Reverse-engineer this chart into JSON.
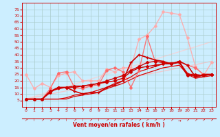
{
  "bg_color": "#cceeff",
  "grid_color": "#aacccc",
  "xlabel": "Vent moyen/en rafales ( km/h )",
  "xlabel_color": "#cc0000",
  "tick_color": "#cc0000",
  "ylim": [
    0,
    80
  ],
  "xlim": [
    -0.5,
    23.5
  ],
  "yticks": [
    5,
    10,
    15,
    20,
    25,
    30,
    35,
    40,
    45,
    50,
    55,
    60,
    65,
    70,
    75
  ],
  "xticks": [
    0,
    1,
    2,
    3,
    4,
    5,
    6,
    7,
    8,
    9,
    10,
    11,
    12,
    13,
    14,
    15,
    16,
    17,
    18,
    19,
    20,
    21,
    22,
    23
  ],
  "series": [
    {
      "x": [
        0,
        1,
        2,
        3,
        4,
        5,
        6,
        7,
        8,
        9,
        10,
        11,
        12,
        13,
        14,
        15,
        16,
        17,
        18,
        19,
        20,
        21,
        22,
        23
      ],
      "y": [
        6,
        6,
        6,
        6,
        6,
        6,
        8,
        9,
        10,
        11,
        14,
        16,
        18,
        21,
        24,
        26,
        28,
        30,
        31,
        32,
        25,
        22,
        23,
        24
      ],
      "color": "#dd0000",
      "lw": 0.9,
      "marker": null,
      "ms": 0,
      "alpha": 1.0,
      "zorder": 3
    },
    {
      "x": [
        0,
        1,
        2,
        3,
        4,
        5,
        6,
        7,
        8,
        9,
        10,
        11,
        12,
        13,
        14,
        15,
        16,
        17,
        18,
        19,
        20,
        21,
        22,
        23
      ],
      "y": [
        6,
        6,
        6,
        6,
        6,
        7,
        9,
        10,
        11,
        13,
        15,
        18,
        20,
        23,
        27,
        29,
        31,
        33,
        34,
        34,
        26,
        23,
        24,
        25
      ],
      "color": "#dd0000",
      "lw": 0.9,
      "marker": null,
      "ms": 0,
      "alpha": 1.0,
      "zorder": 3
    },
    {
      "x": [
        0,
        1,
        2,
        3,
        4,
        5,
        6,
        7,
        8,
        9,
        10,
        11,
        12,
        13,
        14,
        15,
        16,
        17,
        18,
        19,
        20,
        21,
        22,
        23
      ],
      "y": [
        6,
        6,
        6,
        11,
        15,
        15,
        15,
        16,
        17,
        18,
        19,
        20,
        22,
        27,
        30,
        31,
        32,
        33,
        33,
        34,
        24,
        24,
        24,
        25
      ],
      "color": "#cc0000",
      "lw": 1.0,
      "marker": "D",
      "ms": 2.0,
      "alpha": 1.0,
      "zorder": 4
    },
    {
      "x": [
        0,
        1,
        2,
        3,
        4,
        5,
        6,
        7,
        8,
        9,
        10,
        11,
        12,
        13,
        14,
        15,
        16,
        17,
        18,
        19,
        20,
        21,
        22,
        23
      ],
      "y": [
        6,
        6,
        6,
        12,
        15,
        15,
        16,
        16,
        17,
        18,
        20,
        22,
        24,
        28,
        31,
        34,
        35,
        34,
        33,
        35,
        25,
        25,
        24,
        25
      ],
      "color": "#cc0000",
      "lw": 1.0,
      "marker": "D",
      "ms": 2.0,
      "alpha": 1.0,
      "zorder": 4
    },
    {
      "x": [
        0,
        1,
        2,
        3,
        4,
        5,
        6,
        7,
        8,
        9,
        10,
        11,
        12,
        13,
        14,
        15,
        16,
        17,
        18,
        19,
        20,
        21,
        22,
        23
      ],
      "y": [
        6,
        6,
        6,
        12,
        14,
        15,
        12,
        10,
        11,
        11,
        15,
        17,
        20,
        34,
        40,
        38,
        36,
        35,
        33,
        35,
        32,
        23,
        25,
        25
      ],
      "color": "#cc0000",
      "lw": 1.2,
      "marker": "+",
      "ms": 3.5,
      "alpha": 1.0,
      "zorder": 5
    },
    {
      "x": [
        0,
        1,
        2,
        3,
        4,
        5,
        6,
        7,
        8,
        9,
        10,
        11,
        12,
        13,
        14,
        15,
        16,
        17,
        18,
        19,
        20,
        21,
        22,
        23
      ],
      "y": [
        6,
        6,
        6,
        14,
        26,
        27,
        15,
        14,
        16,
        17,
        28,
        30,
        27,
        15,
        28,
        54,
        35,
        34,
        33,
        35,
        32,
        30,
        25,
        25
      ],
      "color": "#ff6666",
      "lw": 1.0,
      "marker": "D",
      "ms": 2.0,
      "alpha": 0.9,
      "zorder": 3
    },
    {
      "x": [
        0,
        1,
        2,
        3,
        4,
        5,
        6,
        7,
        8,
        9,
        10,
        11,
        12,
        13,
        14,
        15,
        16,
        17,
        18,
        19,
        20,
        21,
        22,
        23
      ],
      "y": [
        25,
        14,
        18,
        15,
        24,
        26,
        27,
        20,
        20,
        20,
        29,
        27,
        30,
        30,
        52,
        55,
        62,
        73,
        72,
        71,
        53,
        31,
        24,
        34
      ],
      "color": "#ffaaaa",
      "lw": 1.0,
      "marker": "D",
      "ms": 2.0,
      "alpha": 0.9,
      "zorder": 2
    },
    {
      "x": [
        0,
        23
      ],
      "y": [
        6,
        35
      ],
      "color": "#ffbbbb",
      "lw": 1.0,
      "marker": null,
      "ms": 0,
      "alpha": 0.7,
      "zorder": 1
    },
    {
      "x": [
        0,
        23
      ],
      "y": [
        6,
        50
      ],
      "color": "#ffcccc",
      "lw": 1.0,
      "marker": null,
      "ms": 0,
      "alpha": 0.7,
      "zorder": 1
    }
  ],
  "arrow_chars": [
    "↗",
    "↑",
    "↗",
    "↗",
    "↗",
    "↑",
    "↗",
    "↑",
    "↗",
    "↑",
    "↗",
    "↗",
    "↗",
    "↗",
    "↗",
    "↗",
    "↗",
    "↗",
    "↗",
    "→",
    "↗",
    "↗",
    "↗",
    "↗"
  ]
}
